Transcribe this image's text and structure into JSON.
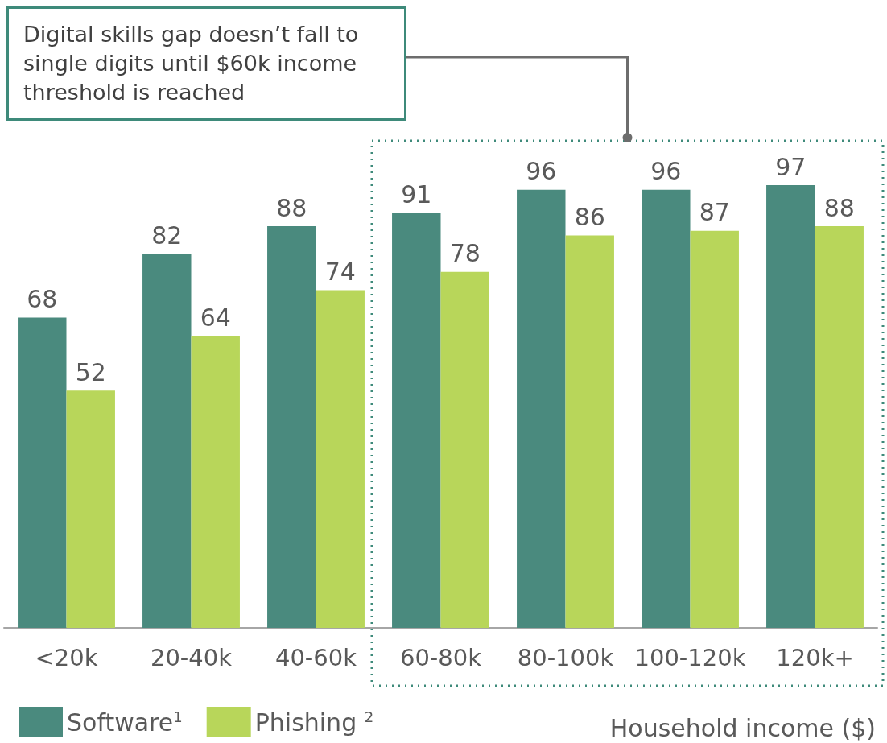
{
  "chart_data": {
    "type": "bar",
    "categories": [
      "<20k",
      "20-40k",
      "40-60k",
      "60-80k",
      "80-100k",
      "100-120k",
      "120k+"
    ],
    "series": [
      {
        "name": "Software$^{1}$",
        "color": "#4a8a7e",
        "values": [
          68,
          82,
          88,
          91,
          96,
          96,
          97
        ]
      },
      {
        "name": "Phishing $^{2}$",
        "color": "#b8d65a",
        "values": [
          52,
          64,
          74,
          78,
          86,
          87,
          88
        ]
      }
    ],
    "tick_labels": "x",
    "data_labels": true,
    "legend": "bottom left",
    "xlabel": "Household income ($)",
    "annotations": [
      "Digital skills gap doesn’t fall to single digits until $60k income threshold is reached"
    ]
  }
}
